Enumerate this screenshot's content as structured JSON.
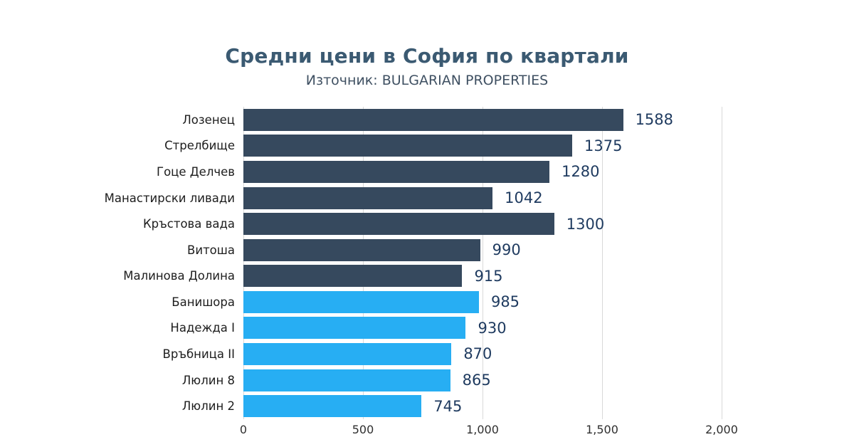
{
  "header": {
    "title": "Средни цени в София по квартали",
    "subtitle": "Източник: BULGARIAN PROPERTIES"
  },
  "colors": {
    "dark_bar": "#36495e",
    "light_bar": "#27aef3",
    "title": "#3b5a72",
    "subtitle": "#3f5062",
    "value_label": "#1e3a5f",
    "gridline": "#d9d9d9"
  },
  "chart_data": {
    "type": "bar",
    "orientation": "horizontal",
    "title": "Средни цени в София по квартали",
    "subtitle": "Източник: BULGARIAN PROPERTIES",
    "categories": [
      "Лозенец",
      "Стрелбище",
      "Гоце Делчев",
      "Манастирски ливади",
      "Кръстова вада",
      "Витоша",
      "Малинова Долина",
      "Банишора",
      "Надежда I",
      "Връбница II",
      "Люлин 8",
      "Люлин 2"
    ],
    "values": [
      1588,
      1375,
      1280,
      1042,
      1300,
      990,
      915,
      985,
      930,
      870,
      865,
      745
    ],
    "value_labels": [
      "1588",
      "1375",
      "1280",
      "1042",
      "1300",
      "990",
      "915",
      "985",
      "930",
      "870",
      "865",
      "745"
    ],
    "bar_groups": [
      "dark",
      "dark",
      "dark",
      "dark",
      "dark",
      "dark",
      "dark",
      "light",
      "light",
      "light",
      "light",
      "light"
    ],
    "xlim": [
      0,
      2000
    ],
    "x_tick_values": [
      0,
      500,
      1000,
      1500,
      2000
    ],
    "x_ticks": [
      "0",
      "500",
      "1,000",
      "1,500",
      "2,000"
    ],
    "grid": "vertical",
    "legend": "none"
  }
}
